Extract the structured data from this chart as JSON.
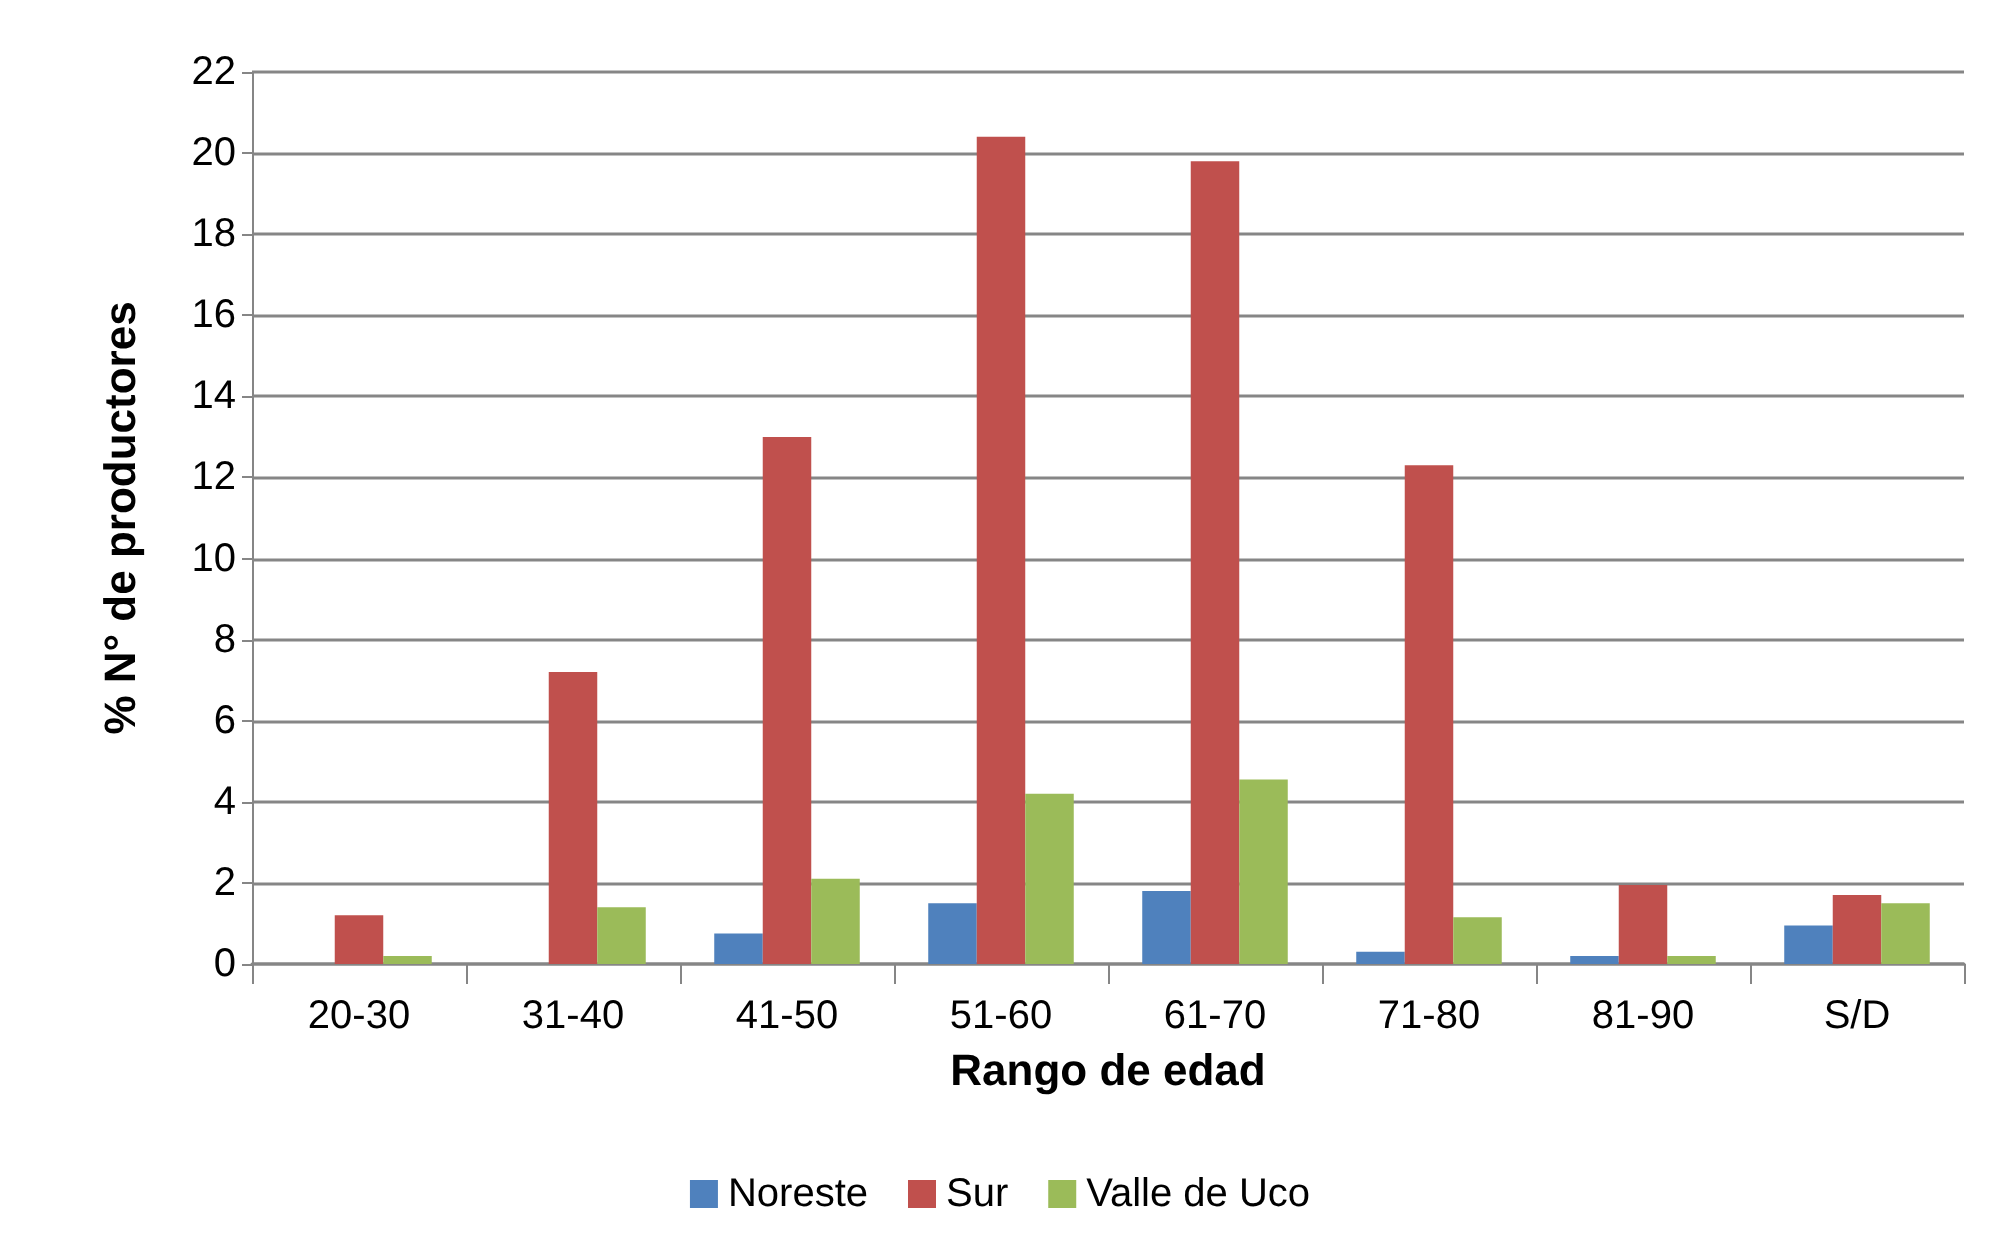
{
  "chart_data": {
    "type": "bar",
    "xlabel": "Rango de edad",
    "ylabel": "% N° de productores",
    "categories": [
      "20-30",
      "31-40",
      "41-50",
      "51-60",
      "61-70",
      "71-80",
      "81-90",
      "S/D"
    ],
    "series": [
      {
        "name": "Noreste",
        "color": "#4f81bd",
        "values": [
          0,
          0,
          0.75,
          1.5,
          1.8,
          0.3,
          0.2,
          0.95
        ]
      },
      {
        "name": "Sur",
        "color": "#c0504d",
        "values": [
          1.2,
          7.2,
          13.0,
          20.4,
          19.8,
          12.3,
          1.95,
          1.7
        ]
      },
      {
        "name": "Valle de Uco",
        "color": "#9bbb59",
        "values": [
          0.2,
          1.4,
          2.1,
          4.2,
          4.55,
          1.15,
          0.2,
          1.5
        ]
      }
    ],
    "ylim": [
      0,
      22
    ],
    "yticks": [
      0,
      2,
      4,
      6,
      8,
      10,
      12,
      14,
      16,
      18,
      20,
      22
    ],
    "grid": "y",
    "legend": "bottom"
  }
}
